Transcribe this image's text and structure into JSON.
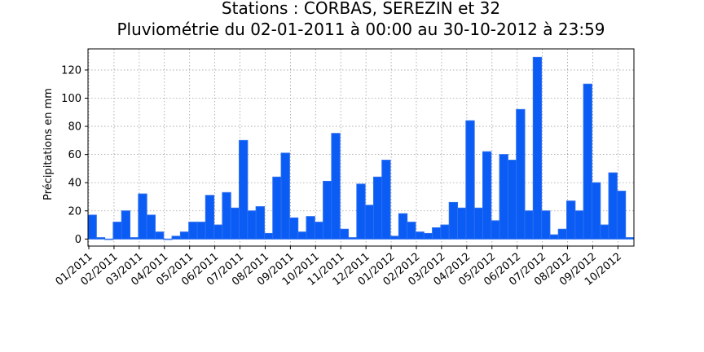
{
  "chart_data": {
    "type": "bar",
    "title": "Stations : CORBAS, SEREZIN et 32",
    "subtitle": "Pluviométrie du 02-01-2011 à 00:00 au 30-10-2012 à 23:59",
    "xlabel": "",
    "ylabel": "Précipitations en mm",
    "ylim": [
      -5,
      135
    ],
    "yticks": [
      0,
      20,
      40,
      60,
      80,
      100,
      120
    ],
    "grid": true,
    "bar_color": "#0a5cf5",
    "bar_edge_color": "#2a6ef0",
    "x_tick_labels": [
      "01/2011",
      "02/2011",
      "03/2011",
      "04/2011",
      "05/2011",
      "06/2011",
      "07/2011",
      "08/2011",
      "09/2011",
      "10/2011",
      "11/2011",
      "12/2011",
      "01/2012",
      "02/2012",
      "03/2012",
      "04/2012",
      "05/2012",
      "06/2012",
      "07/2012",
      "08/2012",
      "09/2012",
      "10/2012"
    ],
    "values": [
      17,
      1,
      0,
      12,
      20,
      1,
      32,
      17,
      5,
      0,
      2,
      5,
      12,
      12,
      31,
      10,
      33,
      22,
      70,
      20,
      23,
      4,
      44,
      61,
      15,
      5,
      16,
      12,
      41,
      75,
      7,
      1,
      39,
      24,
      44,
      56,
      2,
      18,
      12,
      5,
      4,
      8,
      10,
      26,
      22,
      84,
      22,
      62,
      13,
      60,
      56,
      92,
      20,
      129,
      20,
      3,
      7,
      27,
      20,
      110,
      40,
      10,
      47,
      34,
      1
    ]
  }
}
